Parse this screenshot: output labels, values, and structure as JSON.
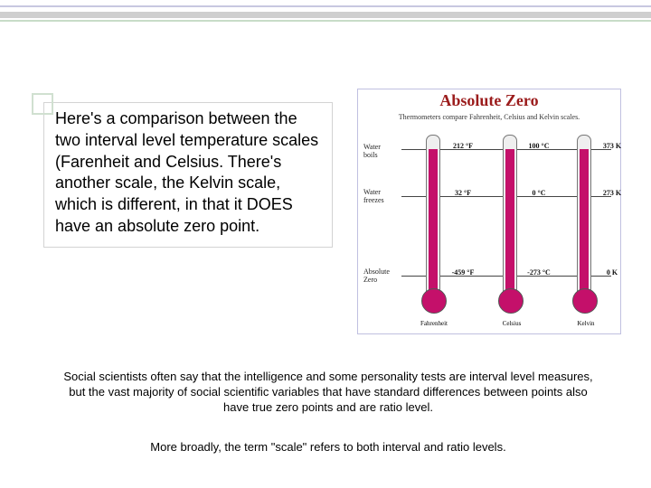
{
  "main_paragraph": "Here's a comparison between the two interval level temperature scales (Farenheit and Celsius. There's another scale, the Kelvin scale, which is different, in that it DOES have an absolute zero point.",
  "footer": {
    "p1": "Social scientists often say that the intelligence and some personality tests are interval level measures, but the vast majority of social scientific variables that have standard differences between points also have true zero points and are ratio level.",
    "p2": "More broadly, the term \"scale\" refers to both interval and ratio levels."
  },
  "chart": {
    "type": "infographic",
    "title": "Absolute Zero",
    "subtitle": "Thermometers compare Fahrenheit, Celsius and Kelvin scales.",
    "background_color": "#ffffff",
    "border_color": "#c0c0e0",
    "title_color": "#9b1c1c",
    "title_fontsize": 18,
    "mercury_color": "#c4106a",
    "tube_bg": "#efefef",
    "tube_border": "#777777",
    "row_labels": [
      "Water boils",
      "Water freezes",
      "Absolute Zero"
    ],
    "scale_labels": [
      "Fahrenheit",
      "Celsius",
      "Kelvin"
    ],
    "values": {
      "fahrenheit": [
        "212 °F",
        "32 °F",
        "-459 °F"
      ],
      "celsius": [
        "100 °C",
        "0 °C",
        "-273 °C"
      ],
      "kelvin": [
        "373 K",
        "273 K",
        "0 K"
      ]
    }
  },
  "icons": {
    "accent_square": "accent-square-icon"
  },
  "decor_colors": {
    "bar_purple": "#c8c8e0",
    "bar_gray": "#cfcfcf",
    "bar_green": "#c8dcc8",
    "accent_border": "#d0e0d0"
  }
}
